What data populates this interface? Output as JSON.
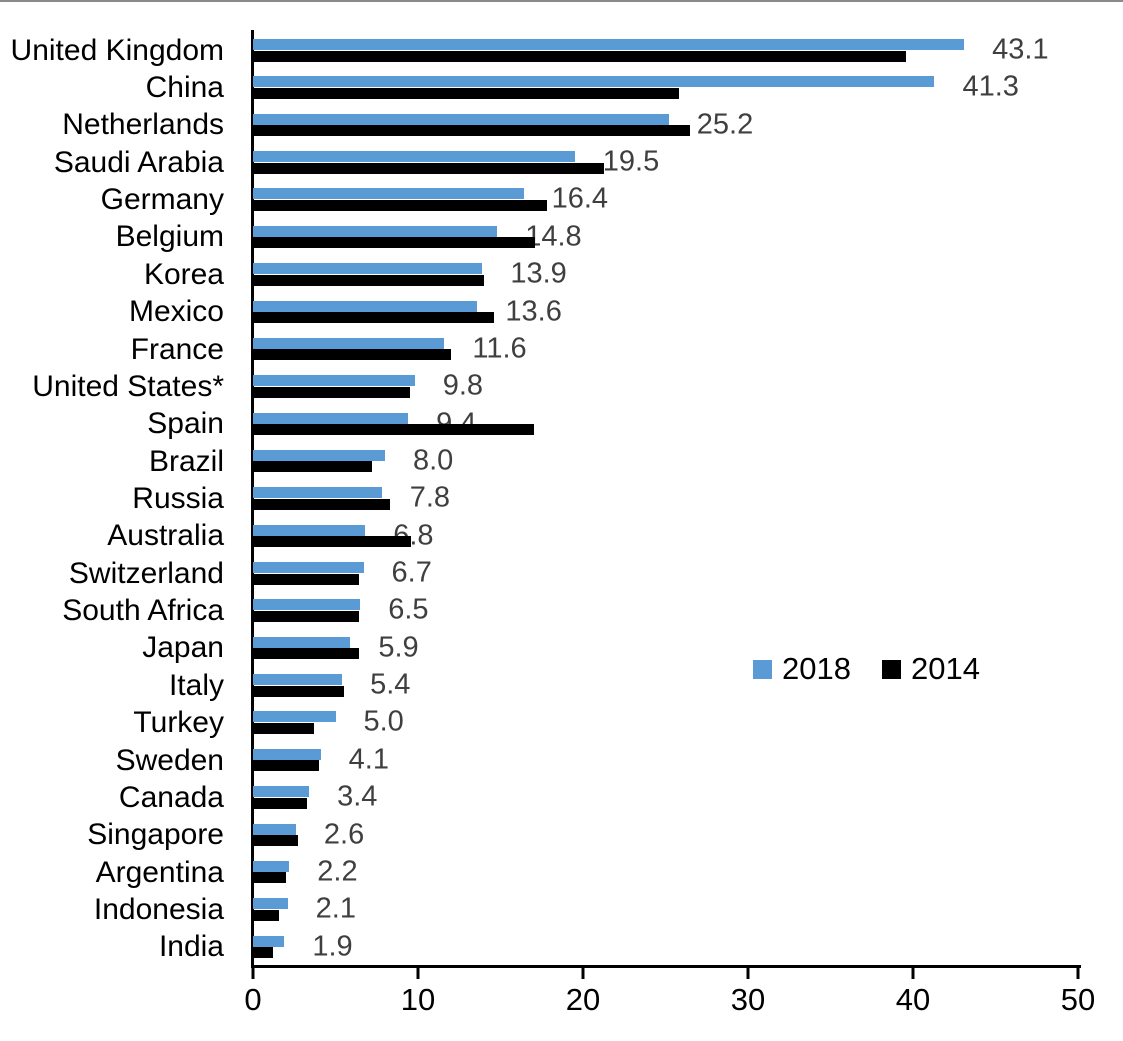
{
  "chart_data": {
    "type": "bar",
    "orientation": "horizontal",
    "title": "",
    "xlabel": "",
    "ylabel": "",
    "xlim": [
      0,
      50
    ],
    "x_ticks": [
      0,
      10,
      20,
      30,
      40,
      50
    ],
    "x_tick_labels": [
      "0",
      "10",
      "20",
      "30",
      "40",
      "50"
    ],
    "grid": false,
    "legend_position": "middle-right",
    "categories": [
      "United Kingdom",
      "China",
      "Netherlands",
      "Saudi Arabia",
      "Germany",
      "Belgium",
      "Korea",
      "Mexico",
      "France",
      "United States*",
      "Spain",
      "Brazil",
      "Russia",
      "Australia",
      "Switzerland",
      "South Africa",
      "Japan",
      "Italy",
      "Turkey",
      "Sweden",
      "Canada",
      "Singapore",
      "Argentina",
      "Indonesia",
      "India"
    ],
    "series": [
      {
        "name": "2018",
        "color": "#5B9BD5",
        "values": [
          43.1,
          41.3,
          25.2,
          19.5,
          16.4,
          14.8,
          13.9,
          13.6,
          11.6,
          9.8,
          9.4,
          8.0,
          7.8,
          6.8,
          6.7,
          6.5,
          5.9,
          5.4,
          5.0,
          4.1,
          3.4,
          2.6,
          2.2,
          2.1,
          1.9
        ]
      },
      {
        "name": "2014",
        "color": "#000000",
        "values": [
          39.6,
          25.8,
          26.5,
          21.3,
          17.8,
          17.1,
          14.0,
          14.6,
          12.0,
          9.5,
          17.0,
          7.2,
          8.3,
          9.6,
          6.4,
          6.4,
          6.4,
          5.5,
          3.7,
          4.0,
          3.3,
          2.7,
          2.0,
          1.6,
          1.2
        ]
      }
    ],
    "value_labels": {
      "series": "2018",
      "color": "#3f3f3f",
      "values": [
        "43.1",
        "41.3",
        "25.2",
        "19.5",
        "16.4",
        "14.8",
        "13.9",
        "13.6",
        "11.6",
        "9.8",
        "9.4",
        "8.0",
        "7.8",
        "6.8",
        "6.7",
        "6.5",
        "5.9",
        "5.4",
        "5.0",
        "4.1",
        "3.4",
        "2.6",
        "2.2",
        "2.1",
        "1.9"
      ]
    },
    "axis_color": "#000000"
  }
}
